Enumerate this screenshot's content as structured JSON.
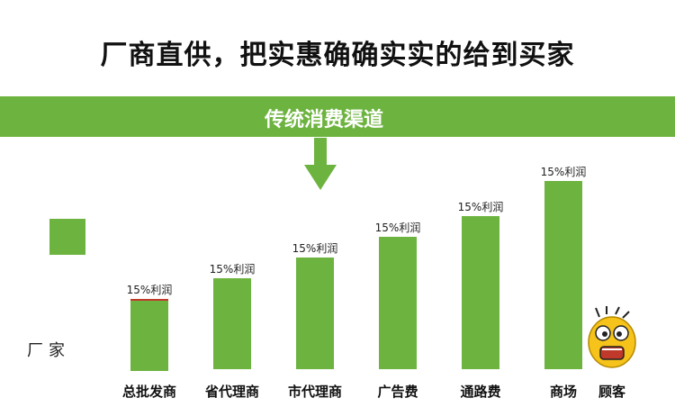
{
  "title": "厂商直供，把实惠确确实实的给到买家",
  "banner": {
    "label": "传统消费渠道"
  },
  "manufacturer": "厂家",
  "customer": "顾客",
  "colors": {
    "bar": "#6db33f",
    "accent": "#c0392b",
    "face": "#f6c31b"
  },
  "stages": [
    {
      "label": "总批发商",
      "margin": "15%利润",
      "level": 1
    },
    {
      "label": "省代理商",
      "margin": "15%利润",
      "level": 2
    },
    {
      "label": "市代理商",
      "margin": "15%利润",
      "level": 3
    },
    {
      "label": "广告费",
      "margin": "15%利润",
      "level": 4
    },
    {
      "label": "通路费",
      "margin": "15%利润",
      "level": 5
    },
    {
      "label": "商场",
      "margin": "15%利润",
      "level": 6
    }
  ]
}
